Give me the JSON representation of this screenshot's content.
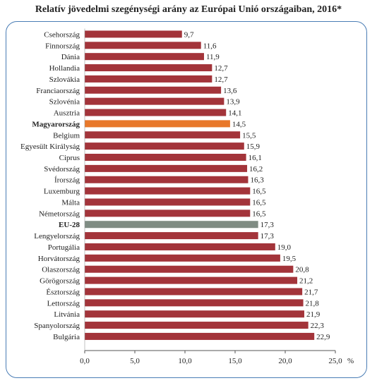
{
  "chart_data": {
    "type": "bar",
    "orientation": "horizontal",
    "title": "Relatív jövedelmi szegénységi arány az Európai Unió országaiban, 2016*",
    "unit": "%",
    "xlim": [
      0,
      25
    ],
    "xticks": [
      "0,0",
      "5,0",
      "10,0",
      "15,0",
      "20,0",
      "25,0"
    ],
    "grid": false,
    "categories": [
      "Csehország",
      "Finnország",
      "Dánia",
      "Hollandia",
      "Szlovákia",
      "Franciaország",
      "Szlovénia",
      "Ausztria",
      "Magyarország",
      "Belgium",
      "Egyesült Királyság",
      "Ciprus",
      "Svédország",
      "Írország",
      "Luxemburg",
      "Málta",
      "Németország",
      "EU-28",
      "Lengyelország",
      "Portugália",
      "Horvátország",
      "Olaszország",
      "Görögország",
      "Észtország",
      "Lettország",
      "Litvánia",
      "Spanyolország",
      "Bulgária"
    ],
    "values": [
      9.7,
      11.6,
      11.9,
      12.7,
      12.7,
      13.6,
      13.9,
      14.1,
      14.5,
      15.5,
      15.9,
      16.1,
      16.2,
      16.3,
      16.5,
      16.5,
      16.5,
      17.3,
      17.3,
      19.0,
      19.5,
      20.8,
      21.2,
      21.7,
      21.8,
      21.9,
      22.3,
      22.9
    ],
    "value_labels": [
      "9,7",
      "11,6",
      "11,9",
      "12,7",
      "12,7",
      "13,6",
      "13,9",
      "14,1",
      "14,5",
      "15,5",
      "15,9",
      "16,1",
      "16,2",
      "16,3",
      "16,5",
      "16,5",
      "16,5",
      "17,3",
      "17,3",
      "19,0",
      "19,5",
      "20,8",
      "21,2",
      "21,7",
      "21,8",
      "21,9",
      "22,3",
      "22,9"
    ],
    "highlight": {
      "Magyarország": "#e8782a",
      "EU-28": "#7f8c83"
    },
    "bold_categories": [
      "Magyarország",
      "EU-28"
    ],
    "colors": {
      "bar": "#a3343a",
      "highlight_hu": "#e8782a",
      "highlight_eu": "#7f8c83",
      "frame": "#4a7db5"
    }
  }
}
